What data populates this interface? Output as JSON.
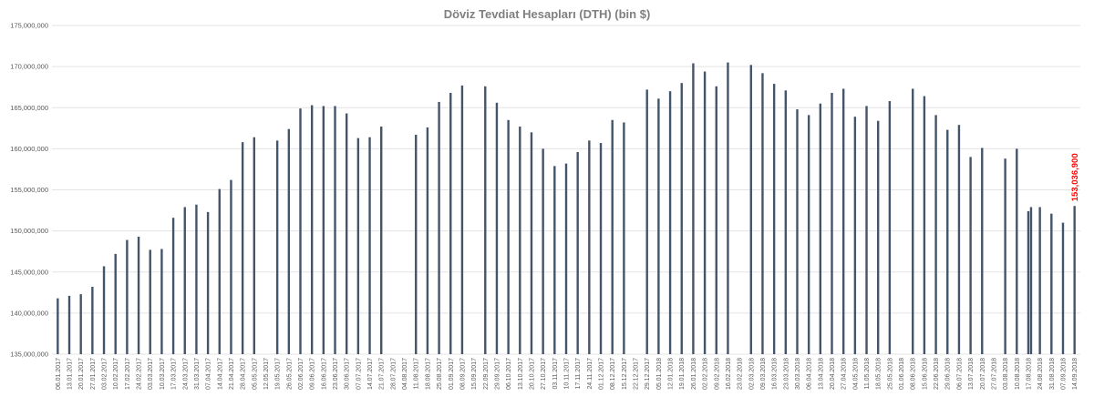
{
  "chart_data": {
    "type": "bar",
    "title": "Döviz Tevdiat Hesapları (DTH) (bin $)",
    "xlabel": "",
    "ylabel": "",
    "ylim": [
      135000000,
      175000000
    ],
    "yticks": [
      135000000,
      140000000,
      145000000,
      150000000,
      155000000,
      160000000,
      165000000,
      170000000,
      175000000
    ],
    "ytick_labels": [
      "135,000,000",
      "140,000,000",
      "145,000,000",
      "150,000,000",
      "155,000,000",
      "160,000,000",
      "165,000,000",
      "170,000,000",
      "175,000,000"
    ],
    "grid": true,
    "legend": "none",
    "bar_color": "#44546a",
    "label_color": "#ff0000",
    "x_tick_labels": [
      "06.01.2017",
      "13.01.2017",
      "20.01.2017",
      "27.01.2017",
      "03.02.2017",
      "10.02.2017",
      "17.02.2017",
      "24.02.2017",
      "03.03.2017",
      "10.03.2017",
      "17.03.2017",
      "24.03.2017",
      "31.03.2017",
      "07.04.2017",
      "14.04.2017",
      "21.04.2017",
      "28.04.2017",
      "05.05.2017",
      "12.05.2017",
      "19.05.2017",
      "26.05.2017",
      "02.06.2017",
      "09.06.2017",
      "16.06.2017",
      "23.06.2017",
      "30.06.2017",
      "07.07.2017",
      "14.07.2017",
      "21.07.2017",
      "28.07.2017",
      "04.08.2017",
      "11.08.2017",
      "18.08.2017",
      "25.08.2017",
      "01.09.2017",
      "08.09.2017",
      "15.09.2017",
      "22.09.2017",
      "29.09.2017",
      "06.10.2017",
      "13.10.2017",
      "20.10.2017",
      "27.10.2017",
      "03.11.2017",
      "10.11.2017",
      "17.11.2017",
      "24.11.2017",
      "01.12.2017",
      "08.12.2017",
      "15.12.2017",
      "22.12.2017",
      "29.12.2017",
      "05.01.2018",
      "12.01.2018",
      "19.01.2018",
      "26.01.2018",
      "02.02.2018",
      "09.02.2018",
      "16.02.2018",
      "23.02.2018",
      "02.03.2018",
      "09.03.2018",
      "16.03.2018",
      "23.03.2018",
      "30.03.2018",
      "06.04.2018",
      "13.04.2018",
      "20.04.2018",
      "27.04.2018",
      "04.05.2018",
      "11.05.2018",
      "18.05.2018",
      "25.05.2018",
      "01.06.2018",
      "08.06.2018",
      "15.06.2018",
      "22.06.2018",
      "29.06.2018",
      "06.07.2018",
      "13.07.2018",
      "20.07.2018",
      "27.07.2018",
      "03.08.2018",
      "10.08.2018",
      "17.08.2018",
      "24.08.2018",
      "31.08.2018",
      "07.09.2018",
      "14.09.2018"
    ],
    "values": [
      141800000,
      142100000,
      142300000,
      143200000,
      145700000,
      147200000,
      148900000,
      149300000,
      147700000,
      147800000,
      151600000,
      152900000,
      153200000,
      152300000,
      155100000,
      156200000,
      160800000,
      161400000,
      null,
      161000000,
      162400000,
      164900000,
      165300000,
      165200000,
      165200000,
      164300000,
      161300000,
      161400000,
      162700000,
      null,
      null,
      161700000,
      162600000,
      165700000,
      166800000,
      167700000,
      null,
      167600000,
      165600000,
      163500000,
      162700000,
      162000000,
      160000000,
      157900000,
      158200000,
      159600000,
      161000000,
      160700000,
      163500000,
      163200000,
      null,
      167200000,
      166100000,
      167000000,
      168000000,
      170400000,
      169400000,
      167600000,
      170500000,
      null,
      170200000,
      169200000,
      167900000,
      167100000,
      164800000,
      164100000,
      165500000,
      166800000,
      167300000,
      163900000,
      165200000,
      163400000,
      165800000,
      null,
      167300000,
      166400000,
      164100000,
      162300000,
      162900000,
      159000000,
      160100000,
      null,
      158800000,
      160000000,
      152400000,
      152900000,
      152100000,
      151000000,
      153036900
    ],
    "extra_bars": [
      {
        "after_index": 84,
        "value": 152900000
      }
    ],
    "annotations": [
      {
        "index": 88,
        "text": "153,036,900"
      }
    ]
  }
}
